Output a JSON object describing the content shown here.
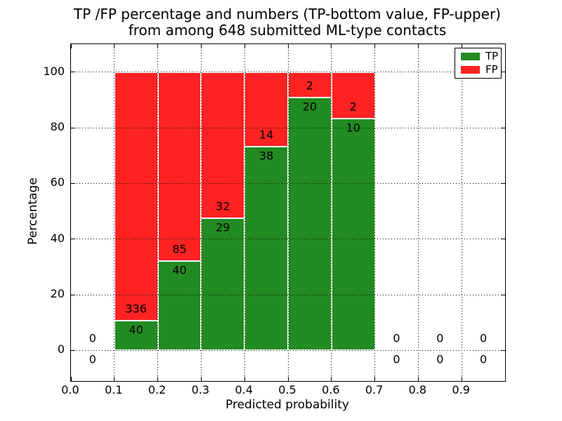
{
  "chart_data": {
    "type": "bar",
    "stacked": true,
    "title_line1": "TP /FP percentage and numbers (TP-bottom value, FP-upper)",
    "title_line2": "from among 648 submitted ML-type contacts",
    "xlabel": "Predicted probability",
    "ylabel": "Percentage",
    "xlim": [
      0.0,
      1.0
    ],
    "ylim": [
      -11,
      110
    ],
    "x_tick_labels": [
      "0.0",
      "0.1",
      "0.2",
      "0.3",
      "0.4",
      "0.5",
      "0.6",
      "0.7",
      "0.8",
      "0.9"
    ],
    "x_tick_values": [
      0.0,
      0.1,
      0.2,
      0.3,
      0.4,
      0.5,
      0.6,
      0.7,
      0.8,
      0.9
    ],
    "y_tick_labels": [
      "0",
      "20",
      "40",
      "60",
      "80",
      "100"
    ],
    "y_tick_values": [
      0,
      20,
      40,
      60,
      80,
      100
    ],
    "grid": {
      "linestyle": "dotted",
      "color": "#000000",
      "above_bars": true
    },
    "legend": {
      "position": "upper-right",
      "items": [
        {
          "label": "TP",
          "color": "#228b22"
        },
        {
          "label": "FP",
          "color": "#ff2222"
        }
      ]
    },
    "colors": {
      "tp": "#228b22",
      "fp": "#ff2222",
      "bar_edge": "#ffffff",
      "spine": "#000000"
    },
    "bins": [
      {
        "x0": 0.0,
        "x1": 0.1,
        "tp": 0,
        "fp": 0,
        "tp_pct": 0,
        "fp_pct": 0
      },
      {
        "x0": 0.1,
        "x1": 0.2,
        "tp": 40,
        "fp": 336,
        "tp_pct": 10.64,
        "fp_pct": 89.36
      },
      {
        "x0": 0.2,
        "x1": 0.3,
        "tp": 40,
        "fp": 85,
        "tp_pct": 32.0,
        "fp_pct": 68.0
      },
      {
        "x0": 0.3,
        "x1": 0.4,
        "tp": 29,
        "fp": 32,
        "tp_pct": 47.54,
        "fp_pct": 52.46
      },
      {
        "x0": 0.4,
        "x1": 0.5,
        "tp": 38,
        "fp": 14,
        "tp_pct": 73.08,
        "fp_pct": 26.92
      },
      {
        "x0": 0.5,
        "x1": 0.6,
        "tp": 20,
        "fp": 2,
        "tp_pct": 90.91,
        "fp_pct": 9.09
      },
      {
        "x0": 0.6,
        "x1": 0.7,
        "tp": 10,
        "fp": 2,
        "tp_pct": 83.33,
        "fp_pct": 16.67
      },
      {
        "x0": 0.7,
        "x1": 0.8,
        "tp": 0,
        "fp": 0,
        "tp_pct": 0,
        "fp_pct": 0
      },
      {
        "x0": 0.8,
        "x1": 0.9,
        "tp": 0,
        "fp": 0,
        "tp_pct": 0,
        "fp_pct": 0
      },
      {
        "x0": 0.9,
        "x1": 1.0,
        "tp": 0,
        "fp": 0,
        "tp_pct": 0,
        "fp_pct": 0
      }
    ]
  }
}
